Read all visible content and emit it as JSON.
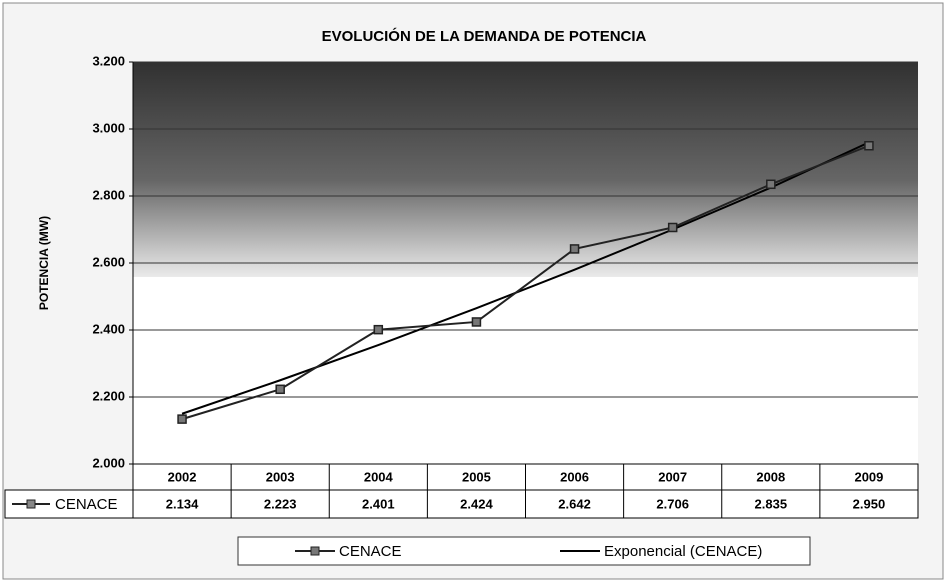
{
  "chart_data": {
    "type": "line",
    "title": "EVOLUCIÓN DE LA DEMANDA DE POTENCIA",
    "y_label": "POTENCIA (MW)",
    "categories": [
      "2002",
      "2003",
      "2004",
      "2005",
      "2006",
      "2007",
      "2008",
      "2009"
    ],
    "series": [
      {
        "name": "CENACE",
        "color": "#222222",
        "marker": "square",
        "values": [
          2134,
          2223,
          2401,
          2424,
          2642,
          2706,
          2835,
          2950
        ],
        "value_labels": [
          "2.134",
          "2.223",
          "2.401",
          "2.424",
          "2.642",
          "2.706",
          "2.835",
          "2.950"
        ]
      },
      {
        "name": "Exponencial (CENACE)",
        "color": "#000000",
        "values": [
          2150,
          2250,
          2355,
          2465,
          2580,
          2700,
          2825,
          2960
        ]
      }
    ],
    "ylim": [
      2000,
      3200
    ],
    "yticks": [
      {
        "value": 2000,
        "label": "2.000"
      },
      {
        "value": 2200,
        "label": "2.200"
      },
      {
        "value": 2400,
        "label": "2.400"
      },
      {
        "value": 2600,
        "label": "2.600"
      },
      {
        "value": 2800,
        "label": "2.800"
      },
      {
        "value": 3000,
        "label": "3.000"
      },
      {
        "value": 3200,
        "label": "3.200"
      }
    ],
    "grid": true,
    "legend": "bottom"
  }
}
